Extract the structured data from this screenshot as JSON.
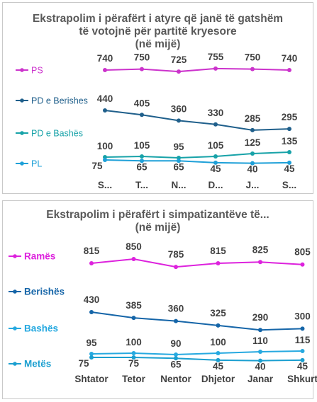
{
  "chart_data": [
    {
      "type": "line",
      "title": "Ekstrapolim  i përafërt i atyre që janë të gatshëm  të votojnë për partitë kryesore",
      "subtitle": "(në mijë)",
      "categories": [
        "S...",
        "T...",
        "N...",
        "D...",
        "J...",
        "S..."
      ],
      "legend_position": "left",
      "series": [
        {
          "name": "PS",
          "values": [
            740,
            750,
            725,
            755,
            750,
            740
          ],
          "color": "#cc33cc"
        },
        {
          "name": "PD e Berishes",
          "values": [
            440,
            405,
            360,
            330,
            285,
            295
          ],
          "color": "#1f5f8b"
        },
        {
          "name": "PD e Bashës",
          "values": [
            100,
            105,
            95,
            105,
            125,
            135
          ],
          "color": "#17a2a8"
        },
        {
          "name": "PL",
          "values": [
            75,
            65,
            65,
            45,
            40,
            45
          ],
          "color": "#1ea0d8"
        }
      ]
    },
    {
      "type": "line",
      "title": "Ekstrapolim  i përafërt i simpatizantëve  të...",
      "subtitle": "(në mijë)",
      "categories": [
        "Shtator",
        "Tetor",
        "Nentor",
        "Dhjetor",
        "Janar",
        "Shkurt"
      ],
      "legend_position": "left",
      "series": [
        {
          "name": "Ramës",
          "values": [
            815,
            850,
            785,
            815,
            825,
            805
          ],
          "color": "#dd22dd"
        },
        {
          "name": "Berishës",
          "values": [
            430,
            385,
            360,
            325,
            290,
            300
          ],
          "color": "#1565a8"
        },
        {
          "name": "Bashës",
          "values": [
            95,
            100,
            90,
            100,
            110,
            115
          ],
          "color": "#26a9e0"
        },
        {
          "name": "Metës",
          "values": [
            75,
            75,
            65,
            45,
            40,
            45
          ],
          "color": "#1b9fd0"
        }
      ]
    }
  ]
}
